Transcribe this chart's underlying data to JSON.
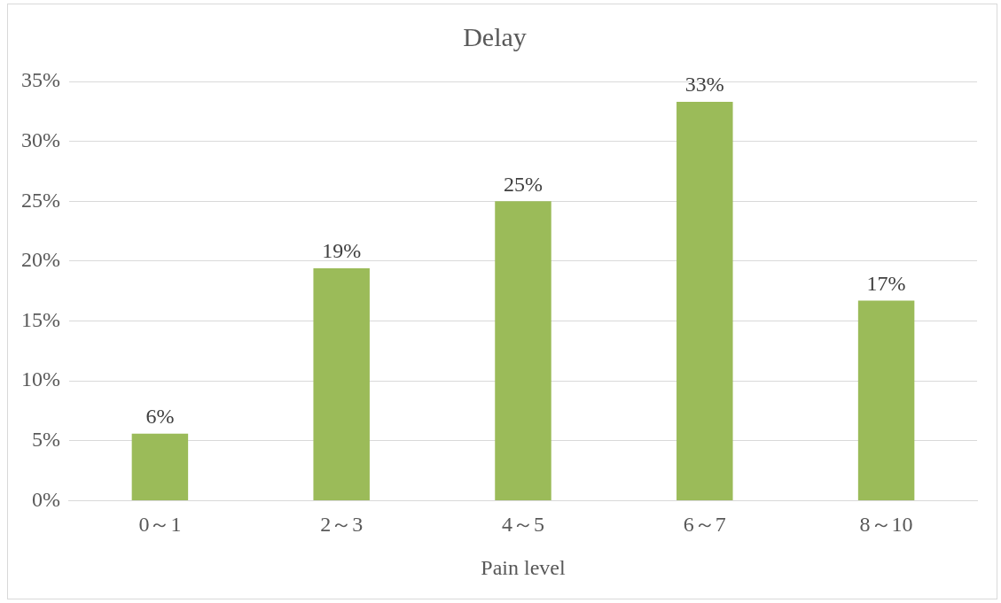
{
  "chart_data": {
    "type": "bar",
    "title": "Delay",
    "xlabel": "Pain level",
    "categories": [
      "0～1",
      "2～3",
      "4～5",
      "6～7",
      "8～10"
    ],
    "values": [
      5.6,
      19.4,
      25,
      33.3,
      16.7
    ],
    "value_labels": [
      "6%",
      "19%",
      "25%",
      "33%",
      "17%"
    ],
    "color": "#9bbb59",
    "ylim": [
      0,
      35
    ],
    "yticks": [
      {
        "value": 0,
        "label": "0%"
      },
      {
        "value": 5,
        "label": "5%"
      },
      {
        "value": 10,
        "label": "10%"
      },
      {
        "value": 15,
        "label": "15%"
      },
      {
        "value": 20,
        "label": "20%"
      },
      {
        "value": 25,
        "label": "25%"
      },
      {
        "value": 30,
        "label": "30%"
      },
      {
        "value": 35,
        "label": "35%"
      }
    ],
    "grid": "y",
    "legend": false
  }
}
